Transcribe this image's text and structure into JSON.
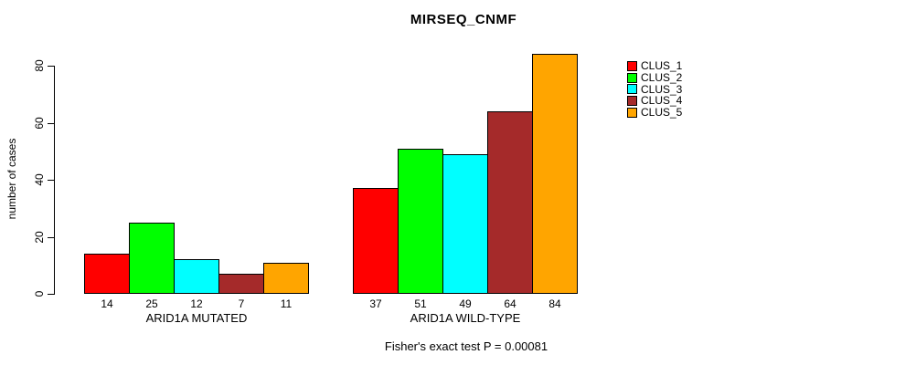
{
  "title": "MIRSEQ_CNMF",
  "y_axis": {
    "label": "number of cases",
    "ticks": [
      0,
      20,
      40,
      60,
      80
    ]
  },
  "groups": [
    {
      "label": "ARID1A MUTATED",
      "values": [
        14,
        25,
        12,
        7,
        11
      ]
    },
    {
      "label": "ARID1A WILD-TYPE",
      "values": [
        37,
        51,
        49,
        64,
        84
      ]
    }
  ],
  "clusters": [
    {
      "label": "CLUS_1",
      "color": "#ff0000"
    },
    {
      "label": "CLUS_2",
      "color": "#00ff00"
    },
    {
      "label": "CLUS_3",
      "color": "#00ffff"
    },
    {
      "label": "CLUS_4",
      "color": "#a52a2a"
    },
    {
      "label": "CLUS_5",
      "color": "#ffa500"
    }
  ],
  "footnote": "Fisher's exact test P = 0.00081",
  "chart_data": {
    "type": "bar",
    "title": "MIRSEQ_CNMF",
    "xlabel": "",
    "ylabel": "number of cases",
    "ylim": [
      0,
      84
    ],
    "yticks": [
      0,
      20,
      40,
      60,
      80
    ],
    "grid": false,
    "legend_position": "right",
    "bar_value_labels": true,
    "categories": [
      "ARID1A MUTATED",
      "ARID1A WILD-TYPE"
    ],
    "series": [
      {
        "name": "CLUS_1",
        "color": "#ff0000",
        "values": [
          14,
          37
        ]
      },
      {
        "name": "CLUS_2",
        "color": "#00ff00",
        "values": [
          25,
          51
        ]
      },
      {
        "name": "CLUS_3",
        "color": "#00ffff",
        "values": [
          12,
          49
        ]
      },
      {
        "name": "CLUS_4",
        "color": "#a52a2a",
        "values": [
          7,
          64
        ]
      },
      {
        "name": "CLUS_5",
        "color": "#ffa500",
        "values": [
          11,
          84
        ]
      }
    ],
    "annotations": [
      "Fisher's exact test P = 0.00081"
    ]
  }
}
